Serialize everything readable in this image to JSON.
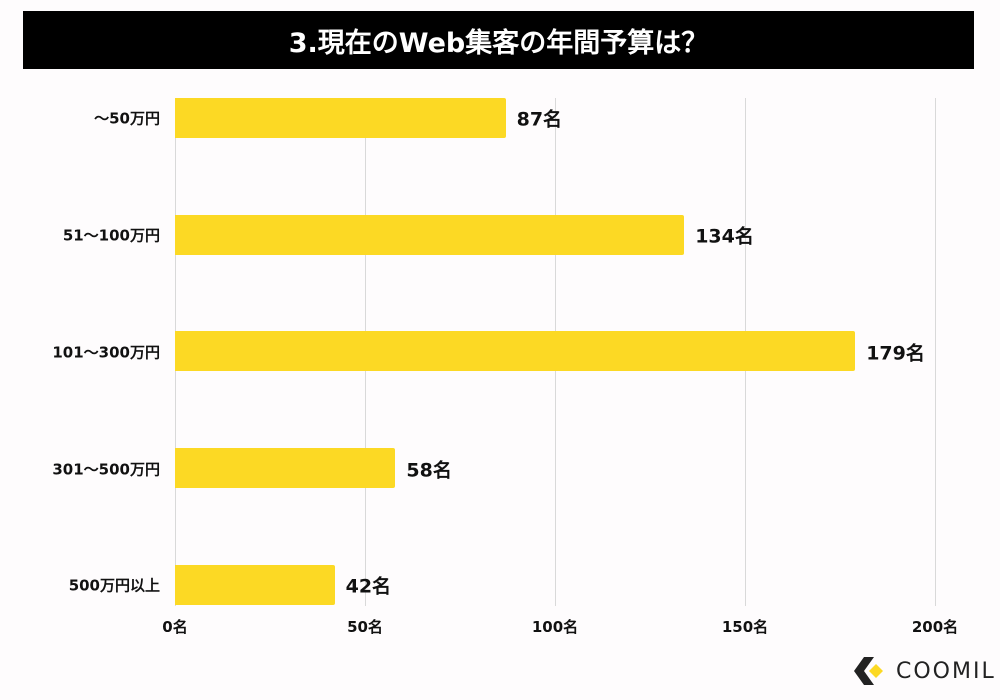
{
  "chart_data": {
    "type": "bar",
    "orientation": "horizontal",
    "title": "3.現在のWeb集客の年間予算は？",
    "categories": [
      "〜50万円",
      "51〜100万円",
      "101〜300万円",
      "301〜500万円",
      "500万円以上"
    ],
    "values": [
      87,
      134,
      179,
      58,
      42
    ],
    "value_labels": [
      "87名",
      "134名",
      "179名",
      "58名",
      "42名"
    ],
    "xlabel": "",
    "ylabel": "",
    "xlim": [
      0,
      200
    ],
    "xticks": [
      0,
      50,
      100,
      150,
      200
    ],
    "xtick_labels": [
      "0名",
      "50名",
      "100名",
      "150名",
      "200名"
    ],
    "grid": true,
    "legend": null,
    "bar_color": "#fcd924"
  },
  "brand": {
    "name": "COOMIL",
    "accent": "#fcd924"
  }
}
